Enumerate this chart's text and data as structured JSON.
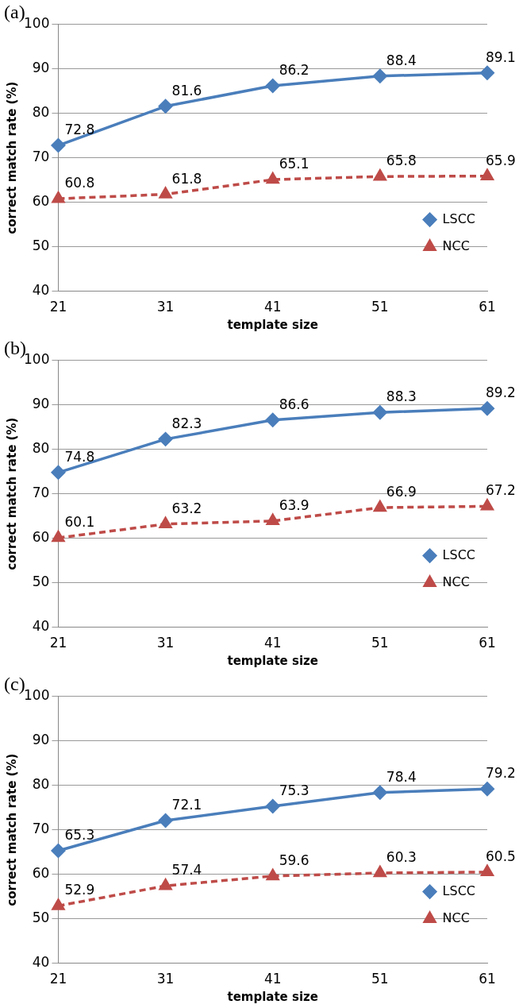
{
  "chart_data": [
    {
      "type": "line",
      "title": "(a)",
      "xlabel": "template size",
      "ylabel": "correct match rate (%)",
      "categories": [
        "21",
        "31",
        "41",
        "51",
        "61"
      ],
      "series": [
        {
          "name": "LSCC",
          "color": "#4a7ebb",
          "marker": "diamond",
          "line_style": "solid",
          "values": [
            72.8,
            81.6,
            86.2,
            88.4,
            89.1
          ]
        },
        {
          "name": "NCC",
          "color": "#be4b48",
          "marker": "triangle",
          "line_style": "dashed",
          "values": [
            60.8,
            61.8,
            65.1,
            65.8,
            65.9
          ]
        }
      ],
      "ylim": [
        40,
        100
      ],
      "yticks": [
        40,
        50,
        60,
        70,
        80,
        90,
        100
      ],
      "grid": "y",
      "legend": "bottom right",
      "data_labels": true
    },
    {
      "type": "line",
      "title": "(b)",
      "xlabel": "template size",
      "ylabel": "correct match rate (%)",
      "categories": [
        "21",
        "31",
        "41",
        "51",
        "61"
      ],
      "series": [
        {
          "name": "LSCC",
          "color": "#4a7ebb",
          "marker": "diamond",
          "line_style": "solid",
          "values": [
            74.8,
            82.3,
            86.6,
            88.3,
            89.2
          ]
        },
        {
          "name": "NCC",
          "color": "#be4b48",
          "marker": "triangle",
          "line_style": "dashed",
          "values": [
            60.1,
            63.2,
            63.9,
            66.9,
            67.2
          ]
        }
      ],
      "ylim": [
        40,
        100
      ],
      "yticks": [
        40,
        50,
        60,
        70,
        80,
        90,
        100
      ],
      "grid": "y",
      "legend": "bottom right",
      "data_labels": true
    },
    {
      "type": "line",
      "title": "(c)",
      "xlabel": "template size",
      "ylabel": "correct match rate (%)",
      "categories": [
        "21",
        "31",
        "41",
        "51",
        "61"
      ],
      "series": [
        {
          "name": "LSCC",
          "color": "#4a7ebb",
          "marker": "diamond",
          "line_style": "solid",
          "values": [
            65.3,
            72.1,
            75.3,
            78.4,
            79.2
          ]
        },
        {
          "name": "NCC",
          "color": "#be4b48",
          "marker": "triangle",
          "line_style": "dashed",
          "values": [
            52.9,
            57.4,
            59.6,
            60.3,
            60.5
          ]
        }
      ],
      "ylim": [
        40,
        100
      ],
      "yticks": [
        40,
        50,
        60,
        70,
        80,
        90,
        100
      ],
      "grid": "y",
      "legend": "bottom right",
      "data_labels": true
    }
  ]
}
